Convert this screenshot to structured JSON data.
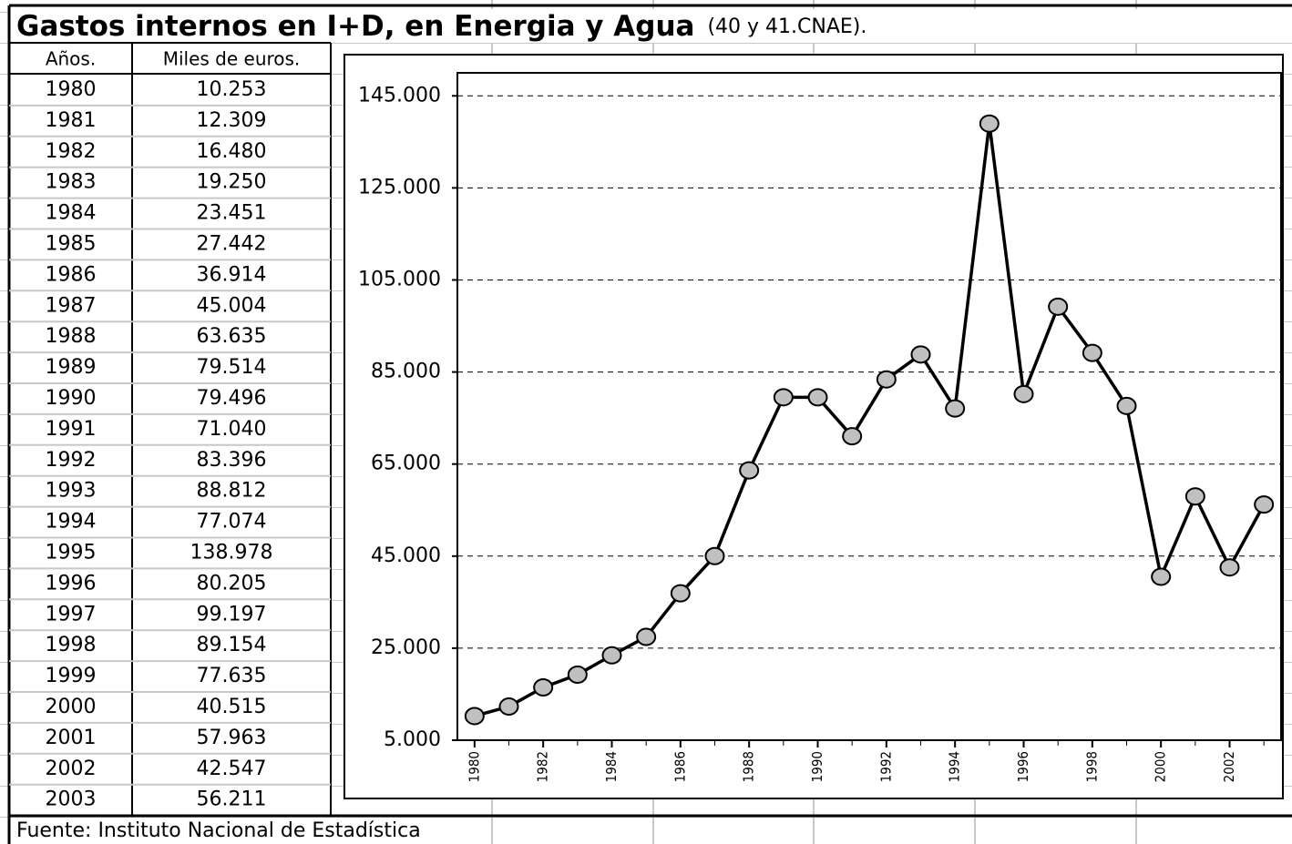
{
  "title": "Gastos internos en I+D, en Energia y Agua",
  "subtitle": "(40 y 41.CNAE).",
  "table": {
    "headers": [
      "Años.",
      "Miles de euros."
    ],
    "rows": [
      [
        "1980",
        "10.253"
      ],
      [
        "1981",
        "12.309"
      ],
      [
        "1982",
        "16.480"
      ],
      [
        "1983",
        "19.250"
      ],
      [
        "1984",
        "23.451"
      ],
      [
        "1985",
        "27.442"
      ],
      [
        "1986",
        "36.914"
      ],
      [
        "1987",
        "45.004"
      ],
      [
        "1988",
        "63.635"
      ],
      [
        "1989",
        "79.514"
      ],
      [
        "1990",
        "79.496"
      ],
      [
        "1991",
        "71.040"
      ],
      [
        "1992",
        "83.396"
      ],
      [
        "1993",
        "88.812"
      ],
      [
        "1994",
        "77.074"
      ],
      [
        "1995",
        "138.978"
      ],
      [
        "1996",
        "80.205"
      ],
      [
        "1997",
        "99.197"
      ],
      [
        "1998",
        "89.154"
      ],
      [
        "1999",
        "77.635"
      ],
      [
        "2000",
        "40.515"
      ],
      [
        "2001",
        "57.963"
      ],
      [
        "2002",
        "42.547"
      ],
      [
        "2003",
        "56.211"
      ]
    ]
  },
  "source": "Fuente: Instituto Nacional de Estadística",
  "chart_data": {
    "type": "line",
    "x": [
      1980,
      1981,
      1982,
      1983,
      1984,
      1985,
      1986,
      1987,
      1988,
      1989,
      1990,
      1991,
      1992,
      1993,
      1994,
      1995,
      1996,
      1997,
      1998,
      1999,
      2000,
      2001,
      2002,
      2003
    ],
    "values": [
      10253,
      12309,
      16480,
      19250,
      23451,
      27442,
      36914,
      45004,
      63635,
      79514,
      79496,
      71040,
      83396,
      88812,
      77074,
      138978,
      80205,
      99197,
      89154,
      77635,
      40515,
      57963,
      42547,
      56211
    ],
    "color": "#000000",
    "marker_color": "#c0c0c0",
    "xlim": [
      1979.5,
      2003.5
    ],
    "xticks": [
      1980,
      1982,
      1984,
      1986,
      1988,
      1990,
      1992,
      1994,
      1996,
      1998,
      2000,
      2002
    ],
    "ylim": [
      5000,
      150000
    ],
    "yticks": [
      {
        "value": 5000,
        "label": "5.000"
      },
      {
        "value": 25000,
        "label": "25.000"
      },
      {
        "value": 45000,
        "label": "45.000"
      },
      {
        "value": 65000,
        "label": "65.000"
      },
      {
        "value": 85000,
        "label": "85.000"
      },
      {
        "value": 105000,
        "label": "105.000"
      },
      {
        "value": 125000,
        "label": "125.000"
      },
      {
        "value": 145000,
        "label": "145.000"
      }
    ],
    "grid": true
  }
}
